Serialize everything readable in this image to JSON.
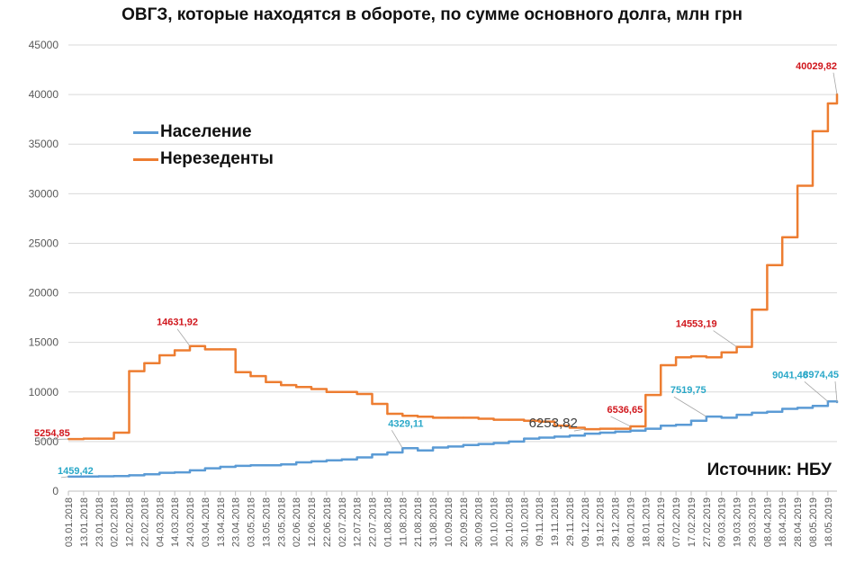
{
  "chart_data": {
    "type": "line",
    "title": "ОВГЗ, которые находятся в обороте, по сумме основного долга, млн грн",
    "source": "Источник: НБУ",
    "ylim": [
      0,
      45000
    ],
    "yticks": [
      0,
      5000,
      10000,
      15000,
      20000,
      25000,
      30000,
      35000,
      40000,
      45000
    ],
    "ytick_labels": [
      "0",
      "5000",
      "10000",
      "15000",
      "20000",
      "25000",
      "30000",
      "35000",
      "40000",
      "45000"
    ],
    "grid": "horizontal",
    "legend_position": "upper-left",
    "x_start": "03.01.2018",
    "x_end": "24.05.2019",
    "x": [
      "03.01.2018",
      "13.01.2018",
      "23.01.2018",
      "02.02.2018",
      "12.02.2018",
      "22.02.2018",
      "04.03.2018",
      "14.03.2018",
      "24.03.2018",
      "03.04.2018",
      "13.04.2018",
      "23.04.2018",
      "03.05.2018",
      "13.05.2018",
      "23.05.2018",
      "02.06.2018",
      "12.06.2018",
      "22.06.2018",
      "02.07.2018",
      "12.07.2018",
      "22.07.2018",
      "01.08.2018",
      "11.08.2018",
      "21.08.2018",
      "31.08.2018",
      "10.09.2018",
      "20.09.2018",
      "30.09.2018",
      "10.10.2018",
      "20.10.2018",
      "30.10.2018",
      "09.11.2018",
      "19.11.2018",
      "29.11.2018",
      "09.12.2018",
      "19.12.2018",
      "29.12.2018",
      "08.01.2019",
      "18.01.2019",
      "28.01.2019",
      "07.02.2019",
      "17.02.2019",
      "27.02.2019",
      "09.03.2019",
      "19.03.2019",
      "29.03.2019",
      "08.04.2019",
      "18.04.2019",
      "28.04.2019",
      "08.05.2019",
      "18.05.2019",
      "24.05.2019"
    ],
    "xtick_labels": [
      "03.01.2018",
      "13.01.2018",
      "23.01.2018",
      "02.02.2018",
      "12.02.2018",
      "22.02.2018",
      "04.03.2018",
      "14.03.2018",
      "24.03.2018",
      "03.04.2018",
      "13.04.2018",
      "23.04.2018",
      "03.05.2018",
      "13.05.2018",
      "23.05.2018",
      "02.06.2018",
      "12.06.2018",
      "22.06.2018",
      "02.07.2018",
      "12.07.2018",
      "22.07.2018",
      "01.08.2018",
      "11.08.2018",
      "21.08.2018",
      "31.08.2018",
      "10.09.2018",
      "20.09.2018",
      "30.09.2018",
      "10.10.2018",
      "20.10.2018",
      "30.10.2018",
      "09.11.2018",
      "19.11.2018",
      "29.11.2018",
      "09.12.2018",
      "19.12.2018",
      "29.12.2018",
      "08.01.2019",
      "18.01.2019",
      "28.01.2019",
      "07.02.2019",
      "17.02.2019",
      "27.02.2019",
      "09.03.2019",
      "19.03.2019",
      "29.03.2019",
      "08.04.2019",
      "18.04.2019",
      "28.04.2019",
      "08.05.2019",
      "18.05.2019"
    ],
    "series": [
      {
        "name": "Население",
        "color": "#5b9bd5",
        "values": [
          1459.42,
          1480,
          1500,
          1520,
          1600,
          1700,
          1850,
          1900,
          2100,
          2300,
          2450,
          2550,
          2600,
          2600,
          2700,
          2900,
          3000,
          3100,
          3200,
          3400,
          3700,
          3900,
          4329.11,
          4100,
          4400,
          4500,
          4650,
          4750,
          4850,
          5000,
          5300,
          5400,
          5500,
          5600,
          5800,
          5900,
          6000,
          6100,
          6300,
          6600,
          6700,
          7100,
          7519.75,
          7400,
          7700,
          7900,
          8000,
          8300,
          8400,
          8600,
          9041.46,
          8974.45
        ]
      },
      {
        "name": "Нерезеденты",
        "color": "#ed7d31",
        "values": [
          5254.85,
          5300,
          5300,
          5900,
          12100,
          12900,
          13700,
          14200,
          14631.92,
          14300,
          14300,
          12000,
          11600,
          11000,
          10700,
          10500,
          10300,
          10000,
          10000,
          9800,
          8800,
          7800,
          7600,
          7500,
          7400,
          7400,
          7400,
          7300,
          7200,
          7200,
          7100,
          7000,
          6600,
          6400,
          6253.82,
          6300,
          6300,
          6536.65,
          9700,
          12700,
          13500,
          13600,
          13500,
          14000,
          14553.19,
          18300,
          22800,
          25600,
          30800,
          36300,
          39100,
          40029.82
        ]
      }
    ],
    "annotations": [
      {
        "text": "1459,42",
        "series": "Население",
        "x": "03.01.2018",
        "value": 1459.42
      },
      {
        "text": "4329,11",
        "series": "Население",
        "x": "11.08.2018",
        "value": 4329.11
      },
      {
        "text": "7519,75",
        "series": "Население",
        "x": "27.02.2019",
        "value": 7519.75
      },
      {
        "text": "9041,46",
        "series": "Население",
        "x": "18.05.2019",
        "value": 9041.46
      },
      {
        "text": "8974,45",
        "series": "Население",
        "x": "24.05.2019",
        "value": 8974.45
      },
      {
        "text": "5254,85",
        "series": "Нерезеденты",
        "x": "03.01.2018",
        "value": 5254.85
      },
      {
        "text": "14631,92",
        "series": "Нерезеденты",
        "x": "24.03.2018",
        "value": 14631.92
      },
      {
        "text": "6253,82",
        "series": "Нерезеденты",
        "x": "09.12.2018",
        "value": 6253.82
      },
      {
        "text": "6536,65",
        "series": "Нерезеденты",
        "x": "08.01.2019",
        "value": 6536.65
      },
      {
        "text": "14553,19",
        "series": "Нерезеденты",
        "x": "19.03.2019",
        "value": 14553.19
      },
      {
        "text": "40029,82",
        "series": "Нерезеденты",
        "x": "24.05.2019",
        "value": 40029.82
      }
    ]
  }
}
